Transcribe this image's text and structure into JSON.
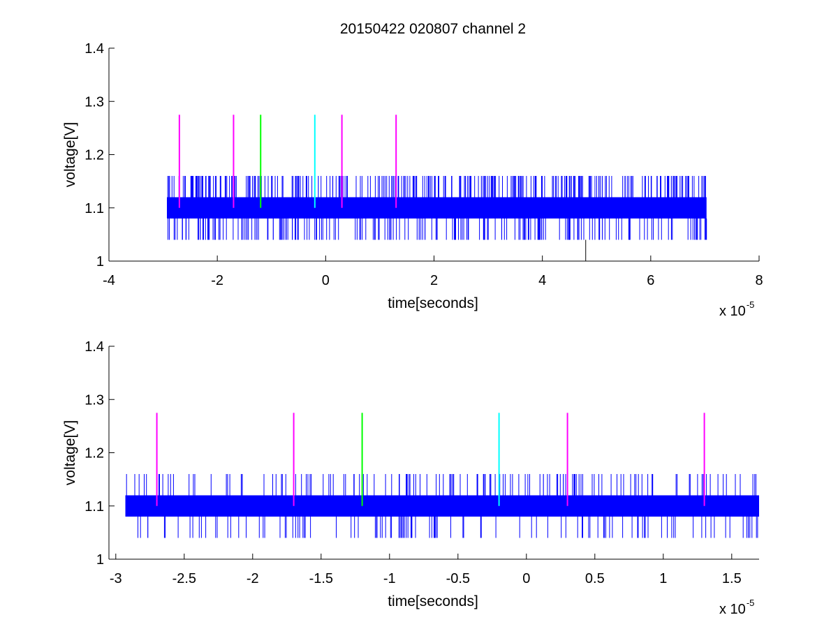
{
  "title": "20150422 020807 channel 2",
  "colors": {
    "signal": "#0000ff",
    "magenta": "#ff00ff",
    "green": "#00ff00",
    "cyan": "#00ffff",
    "black": "#000000"
  },
  "chart_data": [
    {
      "type": "line",
      "title": "20150422 020807 channel 2",
      "xlabel": "time[seconds]",
      "ylabel": "voltage[V]",
      "x_exponent_label": "x 10",
      "x_exponent_power": "-5",
      "x_scale": 1e-05,
      "xlim": [
        -4,
        8
      ],
      "ylim": [
        1.0,
        1.4
      ],
      "xticks": [
        "-4",
        "-2",
        "0",
        "2",
        "4",
        "6",
        "8"
      ],
      "xtick_values": [
        -4,
        -2,
        0,
        2,
        4,
        6,
        8
      ],
      "yticks": [
        "1",
        "1.1",
        "1.2",
        "1.3",
        "1.4"
      ],
      "ytick_values": [
        1.0,
        1.1,
        1.2,
        1.3,
        1.4
      ],
      "grid": false,
      "series": [
        {
          "color": "#0000ff",
          "x_range": [
            -2.93,
            7.03
          ],
          "baseline_band": [
            1.08,
            1.12
          ],
          "spike_high": 1.16,
          "spike_low": 1.04
        }
      ],
      "markers": [
        {
          "x": -2.7,
          "y": [
            1.1,
            1.275
          ],
          "color": "#ff00ff"
        },
        {
          "x": -1.7,
          "y": [
            1.1,
            1.275
          ],
          "color": "#ff00ff"
        },
        {
          "x": -1.2,
          "y": [
            1.1,
            1.275
          ],
          "color": "#00ff00"
        },
        {
          "x": -0.2,
          "y": [
            1.1,
            1.275
          ],
          "color": "#00ffff"
        },
        {
          "x": 0.3,
          "y": [
            1.1,
            1.275
          ],
          "color": "#ff00ff"
        },
        {
          "x": 1.3,
          "y": [
            1.1,
            1.275
          ],
          "color": "#ff00ff"
        }
      ],
      "reference_lines": [
        {
          "x": 4.8,
          "y": [
            1.0,
            1.04
          ],
          "color": "#000000"
        }
      ]
    },
    {
      "type": "line",
      "xlabel": "time[seconds]",
      "ylabel": "voltage[V]",
      "x_exponent_label": "x 10",
      "x_exponent_power": "-5",
      "x_scale": 1e-05,
      "xlim": [
        -3.05,
        1.7
      ],
      "ylim": [
        1.0,
        1.4
      ],
      "xticks": [
        "-3",
        "-2.5",
        "-2",
        "-1.5",
        "-1",
        "-0.5",
        "0",
        "0.5",
        "1",
        "1.5"
      ],
      "xtick_values": [
        -3,
        -2.5,
        -2,
        -1.5,
        -1,
        -0.5,
        0,
        0.5,
        1,
        1.5
      ],
      "yticks": [
        "1",
        "1.1",
        "1.2",
        "1.3",
        "1.4"
      ],
      "ytick_values": [
        1.0,
        1.1,
        1.2,
        1.3,
        1.4
      ],
      "grid": false,
      "series": [
        {
          "color": "#0000ff",
          "x_range": [
            -2.93,
            1.7
          ],
          "baseline_band": [
            1.08,
            1.12
          ],
          "spike_high": 1.16,
          "spike_low": 1.04
        }
      ],
      "markers": [
        {
          "x": -2.7,
          "y": [
            1.1,
            1.275
          ],
          "color": "#ff00ff"
        },
        {
          "x": -1.7,
          "y": [
            1.1,
            1.275
          ],
          "color": "#ff00ff"
        },
        {
          "x": -1.2,
          "y": [
            1.1,
            1.275
          ],
          "color": "#00ff00"
        },
        {
          "x": -0.2,
          "y": [
            1.1,
            1.275
          ],
          "color": "#00ffff"
        },
        {
          "x": 0.3,
          "y": [
            1.1,
            1.275
          ],
          "color": "#ff00ff"
        },
        {
          "x": 1.3,
          "y": [
            1.1,
            1.275
          ],
          "color": "#ff00ff"
        }
      ],
      "reference_lines": []
    }
  ]
}
